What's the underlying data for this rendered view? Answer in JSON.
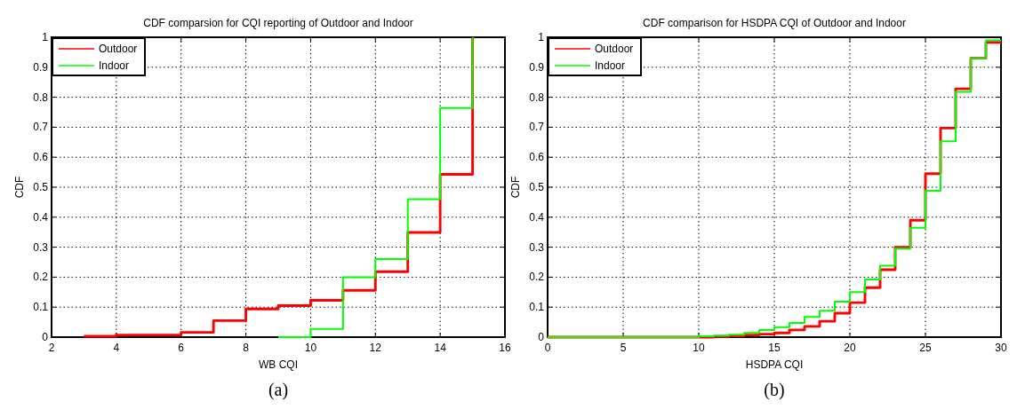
{
  "chart_data": [
    {
      "type": "step",
      "title": "CDF comparsion for CQI reporting of Outdoor and Indoor",
      "xlabel": "WB CQI",
      "ylabel": "CDF",
      "xlim": [
        2,
        16
      ],
      "xticks": [
        2,
        4,
        6,
        8,
        10,
        12,
        14,
        16
      ],
      "ylim": [
        0,
        1
      ],
      "yticks": [
        0,
        0.1,
        0.2,
        0.3,
        0.4,
        0.5,
        0.6,
        0.7,
        0.8,
        0.9,
        1
      ],
      "grid": true,
      "legend": "top left",
      "annotations": [
        "(a)"
      ],
      "series": [
        {
          "name": "Outdoor",
          "color": "#ff0000",
          "x": [
            3,
            4,
            5,
            6,
            7,
            8,
            9,
            10,
            11,
            12,
            13,
            14,
            15
          ],
          "values": [
            0.003,
            0.007,
            0.007,
            0.016,
            0.055,
            0.094,
            0.105,
            0.123,
            0.156,
            0.218,
            0.349,
            0.543,
            1
          ]
        },
        {
          "name": "Indoor",
          "color": "#00ff00",
          "x": [
            9,
            10,
            11,
            12,
            13,
            14,
            15
          ],
          "values": [
            0,
            0.027,
            0.2,
            0.26,
            0.46,
            0.764,
            1
          ]
        }
      ]
    },
    {
      "type": "step",
      "title": "CDF comparison for HSDPA CQI of Outdoor and Indoor",
      "xlabel": "HSDPA CQI",
      "ylabel": "CDF",
      "xlim": [
        0,
        30
      ],
      "xticks": [
        0,
        5,
        10,
        15,
        20,
        25,
        30
      ],
      "ylim": [
        0,
        1
      ],
      "yticks": [
        0,
        0.1,
        0.2,
        0.3,
        0.4,
        0.5,
        0.6,
        0.7,
        0.8,
        0.9,
        1
      ],
      "grid": true,
      "legend": "top left",
      "annotations": [
        "(b)"
      ],
      "series": [
        {
          "name": "Outdoor",
          "color": "#ff0000",
          "x": [
            0,
            10,
            11,
            12,
            13,
            14,
            15,
            16,
            17,
            18,
            19,
            20,
            21,
            22,
            23,
            24,
            25,
            26,
            27,
            28,
            29,
            30
          ],
          "values": [
            0,
            0,
            0.002,
            0.004,
            0.007,
            0.01,
            0.014,
            0.024,
            0.036,
            0.053,
            0.08,
            0.115,
            0.165,
            0.225,
            0.3,
            0.39,
            0.545,
            0.697,
            0.828,
            0.93,
            0.983,
            0.983
          ]
        },
        {
          "name": "Indoor",
          "color": "#00ff00",
          "x": [
            0,
            10,
            11,
            12,
            13,
            14,
            15,
            16,
            17,
            18,
            19,
            20,
            21,
            22,
            23,
            24,
            25,
            26,
            27,
            28,
            29,
            30
          ],
          "values": [
            0,
            0.003,
            0.005,
            0.008,
            0.014,
            0.024,
            0.033,
            0.047,
            0.067,
            0.088,
            0.118,
            0.15,
            0.192,
            0.238,
            0.295,
            0.365,
            0.488,
            0.653,
            0.818,
            0.93,
            0.99,
            0.99
          ]
        }
      ]
    }
  ]
}
